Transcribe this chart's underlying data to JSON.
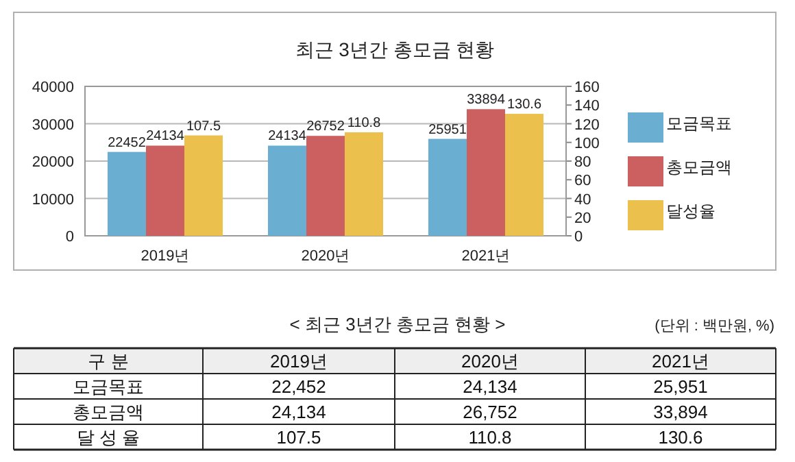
{
  "chart_data": [
    {
      "type": "bar",
      "title": "최근 3년간 총모금 현황",
      "categories": [
        "2019년",
        "2020년",
        "2021년"
      ],
      "series": [
        {
          "name": "모금목표",
          "color": "#6aafd2",
          "values": [
            22452,
            24134,
            25951
          ]
        },
        {
          "name": "총모금액",
          "color": "#cc6060",
          "values": [
            24134,
            26752,
            33894
          ]
        },
        {
          "name": "달성율",
          "color": "#ebc04c",
          "values": [
            107.5,
            110.8,
            130.6
          ],
          "axis": "y2"
        }
      ],
      "ylim": [
        0,
        40000
      ],
      "yticks": [
        0,
        10000,
        20000,
        30000,
        40000
      ],
      "y2lim": [
        0,
        160
      ],
      "y2ticks": [
        0,
        20,
        40,
        60,
        80,
        100,
        120,
        140,
        160
      ],
      "grid": "y",
      "legend": "right",
      "data_labels": true
    },
    {
      "type": "other",
      "title": "< 최근 3년간 총모금 현황 >",
      "annotations": [
        "(단위 : 백만원, %)"
      ],
      "legend_title": "구 분",
      "categories": [
        "2019년",
        "2020년",
        "2021년"
      ],
      "series": [
        {
          "name": "모금목표",
          "values": [
            22452,
            24134,
            25951
          ],
          "value_labels": [
            "22,452",
            "24,134",
            "25,951"
          ]
        },
        {
          "name": "총모금액",
          "values": [
            24134,
            26752,
            33894
          ],
          "value_labels": [
            "24,134",
            "26,752",
            "33,894"
          ]
        },
        {
          "name": "달 성 율",
          "values": [
            107.5,
            110.8,
            130.6
          ],
          "value_labels": [
            "107.5",
            "110.8",
            "130.6"
          ]
        }
      ]
    }
  ]
}
